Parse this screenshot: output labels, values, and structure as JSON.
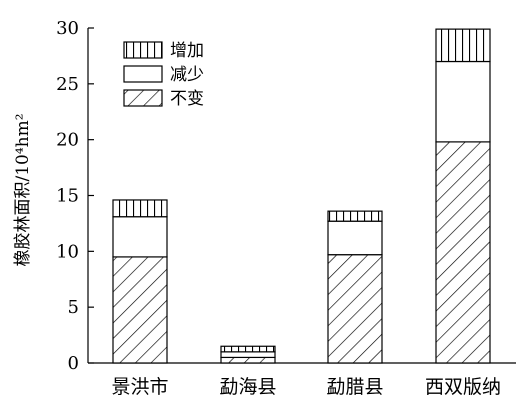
{
  "chart_data": {
    "type": "bar",
    "stacked": true,
    "title": "",
    "xlabel": "",
    "ylabel": "橡胶林面积/10⁴hm²",
    "ylim": [
      0,
      30
    ],
    "yticks": [
      "0",
      "5",
      "10",
      "15",
      "20",
      "25",
      "30"
    ],
    "grid": false,
    "legend_position": "top-left",
    "categories": [
      "景洪市",
      "勐海县",
      "勐腊县",
      "西双版纳"
    ],
    "series": [
      {
        "name": "不变",
        "pattern": "diagonal-hatch",
        "values": [
          9.5,
          0.5,
          9.7,
          19.8
        ]
      },
      {
        "name": "减少",
        "pattern": "blank",
        "values": [
          3.6,
          0.5,
          3.0,
          7.2
        ]
      },
      {
        "name": "增加",
        "pattern": "vertical-hatch",
        "values": [
          1.5,
          0.5,
          0.9,
          2.9
        ]
      }
    ],
    "colors": {
      "line": "#000000",
      "fill": "#ffffff"
    }
  }
}
